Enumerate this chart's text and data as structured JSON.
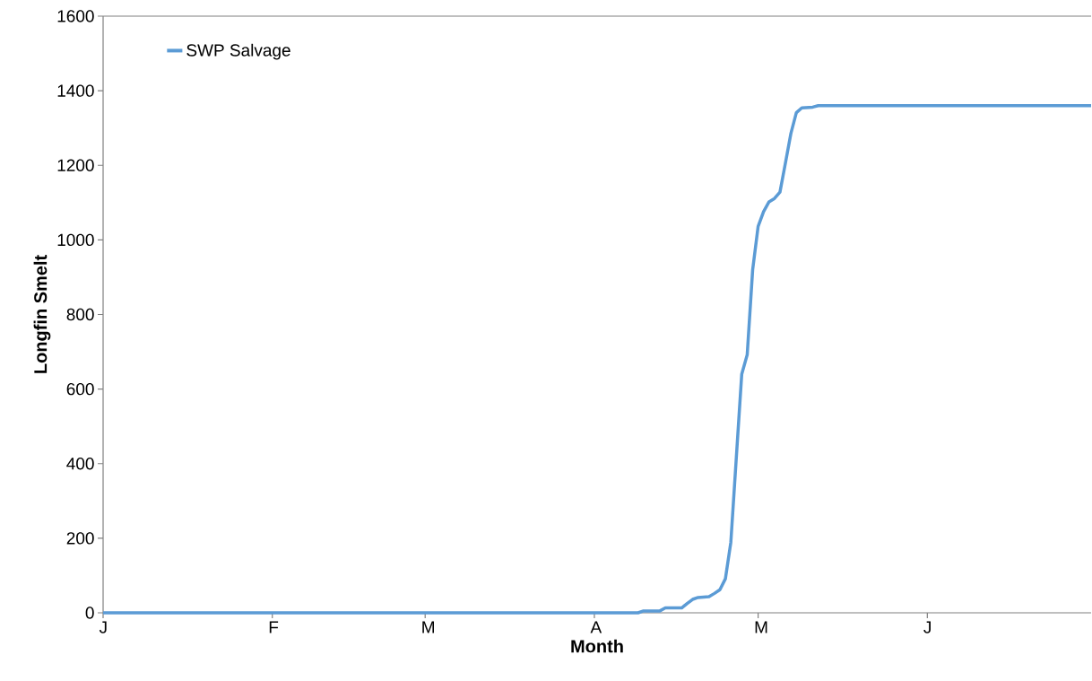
{
  "chart_data": {
    "type": "line",
    "xlabel": "Month",
    "ylabel": "Longfin Smelt",
    "categories": [
      "J",
      null,
      null,
      null,
      null,
      null,
      null,
      null,
      null,
      null,
      null,
      null,
      null,
      null,
      null,
      null,
      null,
      null,
      null,
      null,
      null,
      null,
      null,
      null,
      null,
      null,
      null,
      null,
      null,
      null,
      null,
      "F",
      null,
      null,
      null,
      null,
      null,
      null,
      null,
      null,
      null,
      null,
      null,
      null,
      null,
      null,
      null,
      null,
      null,
      null,
      null,
      null,
      null,
      null,
      null,
      null,
      null,
      null,
      null,
      "M",
      null,
      null,
      null,
      null,
      null,
      null,
      null,
      null,
      null,
      null,
      null,
      null,
      null,
      null,
      null,
      null,
      null,
      null,
      null,
      null,
      null,
      null,
      null,
      null,
      null,
      null,
      null,
      null,
      null,
      null,
      "A",
      null,
      null,
      null,
      null,
      null,
      null,
      null,
      null,
      null,
      null,
      null,
      null,
      null,
      null,
      null,
      null,
      null,
      null,
      null,
      null,
      null,
      null,
      null,
      null,
      null,
      null,
      null,
      null,
      null,
      "M",
      null,
      null,
      null,
      null,
      null,
      null,
      null,
      null,
      null,
      null,
      null,
      null,
      null,
      null,
      null,
      null,
      null,
      null,
      null,
      null,
      null,
      null,
      null,
      null,
      null,
      null,
      null,
      null,
      null,
      null,
      "J",
      null,
      null,
      null,
      null,
      null,
      null,
      null,
      null,
      null,
      null,
      null,
      null,
      null,
      null,
      null,
      null,
      null,
      null,
      null,
      null,
      null,
      null,
      null,
      null,
      null,
      null,
      null,
      null,
      null,
      null
    ],
    "series": [
      {
        "name": "SWP Salvage",
        "color": "#5b9bd5",
        "values": [
          0,
          0,
          0,
          0,
          0,
          0,
          0,
          0,
          0,
          0,
          0,
          0,
          0,
          0,
          0,
          0,
          0,
          0,
          0,
          0,
          0,
          0,
          0,
          0,
          0,
          0,
          0,
          0,
          0,
          0,
          0,
          0,
          0,
          0,
          0,
          0,
          0,
          0,
          0,
          0,
          0,
          0,
          0,
          0,
          0,
          0,
          0,
          0,
          0,
          0,
          0,
          0,
          0,
          0,
          0,
          0,
          0,
          0,
          0,
          0,
          0,
          0,
          0,
          0,
          0,
          0,
          0,
          0,
          0,
          0,
          0,
          0,
          0,
          0,
          0,
          0,
          0,
          0,
          0,
          0,
          0,
          0,
          0,
          0,
          0,
          0,
          0,
          0,
          0,
          0,
          0,
          0,
          0,
          0,
          0,
          0,
          0,
          0,
          0,
          5,
          5,
          5,
          5,
          13,
          13,
          13,
          13,
          25,
          36,
          41,
          42,
          43,
          52,
          62,
          91,
          189,
          415,
          640,
          692,
          920,
          1036,
          1076,
          1102,
          1111,
          1128,
          1206,
          1285,
          1341,
          1354,
          1355,
          1356,
          1360,
          1360,
          1360,
          1360,
          1360,
          1360,
          1360,
          1360,
          1360,
          1360,
          1360,
          1360,
          1360,
          1360,
          1360,
          1360,
          1360,
          1360,
          1360,
          1360,
          1360,
          1360,
          1360,
          1360,
          1360,
          1360,
          1360,
          1360,
          1360,
          1360,
          1360,
          1360,
          1360,
          1360,
          1360,
          1360,
          1360,
          1360,
          1360,
          1360,
          1360,
          1360,
          1360,
          1360,
          1360,
          1360,
          1360,
          1360,
          1360,
          1360,
          1360
        ]
      }
    ],
    "ylim": [
      0,
      1600
    ],
    "yticks": [
      0,
      200,
      400,
      600,
      800,
      1000,
      1200,
      1400,
      1600
    ],
    "legend": "top left"
  }
}
